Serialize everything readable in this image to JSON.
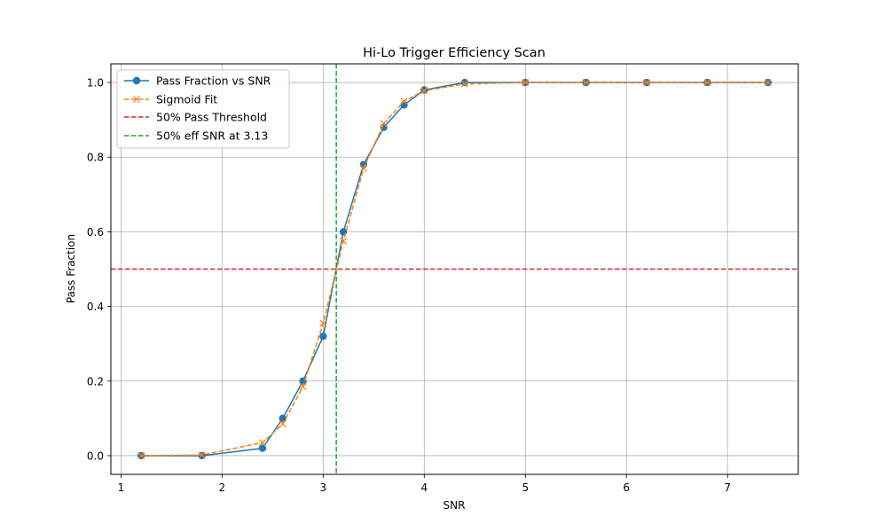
{
  "chart_data": {
    "type": "line",
    "title": "Hi-Lo Trigger Efficiency Scan",
    "xlabel": "SNR",
    "ylabel": "Pass Fraction",
    "xlim": [
      0.9,
      7.7
    ],
    "ylim": [
      -0.05,
      1.05
    ],
    "xticks": [
      1,
      2,
      3,
      4,
      5,
      6,
      7
    ],
    "yticks": [
      "0.0",
      "0.2",
      "0.4",
      "0.6",
      "0.8",
      "1.0"
    ],
    "grid": true,
    "legend_position": "top-left",
    "series": [
      {
        "name": "Pass Fraction vs SNR",
        "color": "#1f77b4",
        "style": "solid",
        "marker": "circle",
        "x": [
          1.2,
          1.8,
          2.4,
          2.6,
          2.8,
          3.0,
          3.2,
          3.4,
          3.6,
          3.8,
          4.0,
          4.4,
          5.0,
          5.6,
          6.2,
          6.8,
          7.4
        ],
        "y": [
          0.0,
          0.0,
          0.02,
          0.1,
          0.2,
          0.32,
          0.6,
          0.78,
          0.88,
          0.94,
          0.98,
          1.0,
          1.0,
          1.0,
          1.0,
          1.0,
          1.0
        ]
      },
      {
        "name": "Sigmoid Fit",
        "color": "#ff7f0e",
        "style": "dashed",
        "marker": "x",
        "x": [
          1.2,
          1.8,
          2.4,
          2.6,
          2.8,
          3.0,
          3.2,
          3.4,
          3.6,
          3.8,
          4.0,
          4.4,
          5.0,
          5.6,
          6.2,
          6.8,
          7.4
        ],
        "y": [
          0.0,
          0.002,
          0.035,
          0.085,
          0.185,
          0.355,
          0.575,
          0.77,
          0.89,
          0.95,
          0.978,
          0.996,
          1.0,
          1.0,
          1.0,
          1.0,
          1.0
        ]
      }
    ],
    "reference_lines": [
      {
        "name": "50% Pass Threshold",
        "orientation": "horizontal",
        "value": 0.5,
        "color": "#d62728",
        "style": "dashed"
      },
      {
        "name": "50% eff SNR at 3.13",
        "orientation": "vertical",
        "value": 3.13,
        "color": "#2ca02c",
        "style": "dashed"
      }
    ]
  }
}
